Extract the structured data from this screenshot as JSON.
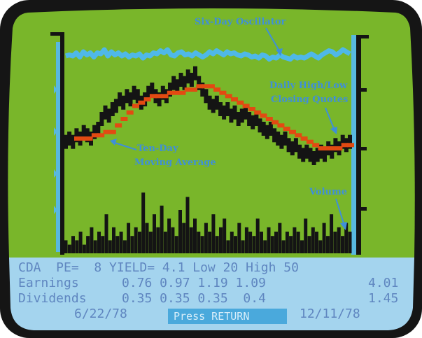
{
  "annotations": {
    "oscillator": "Six-Day Oscillator",
    "daily_line1": "Daily High/Low",
    "daily_line2": "Closing Quotes",
    "ma_line1": "Ten-Day",
    "ma_line2": "Moving Average",
    "volume": "Volume"
  },
  "info": {
    "row1": "CDA  PE=  8 YIELD= 4.1 Low 20 High 50",
    "earnings_label": "Earnings",
    "earnings_values": "0.76 0.97 1.19 1.09",
    "earnings_total": "4.01",
    "dividends_label": "Dividends",
    "dividends_values": "0.35 0.35 0.35  0.4",
    "dividends_total": "1.45",
    "start_date": "6/22/78",
    "end_date": "12/11/78",
    "press_return": "Press RETURN"
  },
  "colors": {
    "bezel": "#151515",
    "plot_bg": "#79b62a",
    "info_bg": "#a4d4ee",
    "oscillator": "#4fb8e8",
    "price": "#141414",
    "moving_average": "#e24a12",
    "axis_cyan": "#58b8e0",
    "annotation": "#3f8fd8"
  },
  "chart_data": {
    "type": "line",
    "series": [
      {
        "name": "Six-Day Oscillator",
        "values": [
          0.4,
          0.45,
          0.4,
          0.55,
          0.35,
          0.6,
          0.45,
          0.55,
          0.35,
          0.55,
          0.5,
          0.7,
          0.4,
          0.6,
          0.45,
          0.55,
          0.4,
          0.5,
          0.35,
          0.45,
          0.4,
          0.5,
          0.3,
          0.45,
          0.4,
          0.55,
          0.5,
          0.65,
          0.55,
          0.7,
          0.45,
          0.4,
          0.55,
          0.6,
          0.45,
          0.5,
          0.4,
          0.55,
          0.45,
          0.35,
          0.45,
          0.6,
          0.5,
          0.65,
          0.55,
          0.45,
          0.6,
          0.5,
          0.55,
          0.45,
          0.4,
          0.5,
          0.45,
          0.35,
          0.4,
          0.3,
          0.45,
          0.4,
          0.25,
          0.35,
          0.3,
          0.45,
          0.35,
          0.3,
          0.25,
          0.4,
          0.3,
          0.35,
          0.3,
          0.4,
          0.5,
          0.4,
          0.3,
          0.45,
          0.55,
          0.65,
          0.6,
          0.45,
          0.55,
          0.7,
          0.6,
          0.5
        ]
      },
      {
        "name": "Daily High/Low Closing Quotes",
        "values": [
          28,
          29,
          28,
          30,
          29,
          31,
          30,
          29,
          31,
          32,
          35,
          37,
          36,
          38,
          39,
          41,
          40,
          42,
          41,
          43,
          42,
          40,
          41,
          43,
          44,
          42,
          41,
          43,
          42,
          44,
          46,
          45,
          47,
          46,
          48,
          47,
          49,
          46,
          44,
          42,
          40,
          39,
          40,
          38,
          37,
          38,
          36,
          37,
          35,
          36,
          37,
          35,
          34,
          35,
          33,
          32,
          31,
          32,
          30,
          29,
          28,
          29,
          27,
          26,
          27,
          25,
          24,
          25,
          24,
          23,
          24,
          25,
          24,
          26,
          25,
          27,
          26,
          28,
          27,
          28
        ]
      },
      {
        "name": "Ten-Day Moving Average",
        "values": [
          29,
          29,
          29,
          30,
          30,
          31,
          31,
          33,
          35,
          37,
          39,
          40,
          41,
          42,
          42,
          42,
          43,
          43,
          43,
          44,
          44,
          45,
          45,
          45,
          44,
          43,
          42,
          41,
          40,
          39,
          38,
          37,
          36,
          35,
          34,
          33,
          32,
          31,
          30,
          29,
          28,
          27,
          26,
          26,
          26,
          26,
          27,
          27
        ]
      },
      {
        "name": "Volume",
        "values": [
          3,
          2,
          4,
          3,
          5,
          2,
          4,
          6,
          3,
          5,
          4,
          9,
          3,
          6,
          4,
          5,
          3,
          7,
          4,
          6,
          5,
          14,
          7,
          5,
          9,
          6,
          11,
          5,
          8,
          6,
          4,
          10,
          7,
          13,
          6,
          8,
          5,
          4,
          7,
          5,
          9,
          4,
          6,
          8,
          3,
          5,
          4,
          7,
          3,
          6,
          5,
          4,
          8,
          5,
          3,
          6,
          4,
          5,
          7,
          3,
          5,
          4,
          6,
          5,
          3,
          8,
          4,
          6,
          5,
          3,
          7,
          4,
          9,
          5,
          6,
          4,
          7,
          5
        ]
      }
    ]
  }
}
